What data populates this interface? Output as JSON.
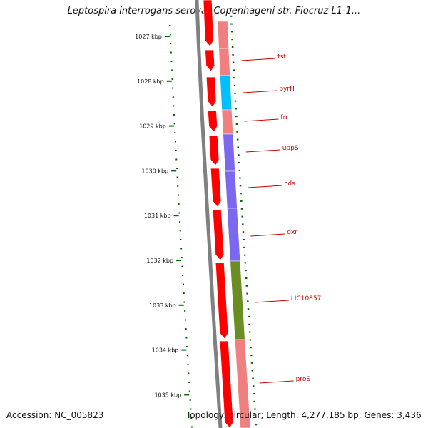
{
  "title": "Leptospira interrogans serovar Copenhageni str. Fiocruz L1-1...",
  "footer": {
    "accession": "Accession: NC_005823",
    "summary": "Topology: circular; Length: 4,277,185 bp; Genes: 3,436"
  },
  "ruler_labels": [
    "1027 kbp",
    "1028 kbp",
    "1029 kbp",
    "1030 kbp",
    "1031 kbp",
    "1032 kbp",
    "1033 kbp",
    "1034 kbp",
    "1035 kbp"
  ],
  "genes": [
    {
      "name": "tsf",
      "color": "#f08080"
    },
    {
      "name": "pyrH",
      "color": "#00bfff"
    },
    {
      "name": "frr",
      "color": "#f08080"
    },
    {
      "name": "uppS",
      "color": "#7b68ee"
    },
    {
      "name": "cds",
      "color": "#7b68ee"
    },
    {
      "name": "dxr",
      "color": "#7b68ee"
    },
    {
      "name": "LIC10857",
      "color": "#6b8e23"
    },
    {
      "name": "proS",
      "color": "#f08080"
    }
  ],
  "colors": {
    "backbone": "#808080",
    "forward_strand": "#ff0000",
    "ruler": "#006400",
    "label": "#cc0000"
  }
}
